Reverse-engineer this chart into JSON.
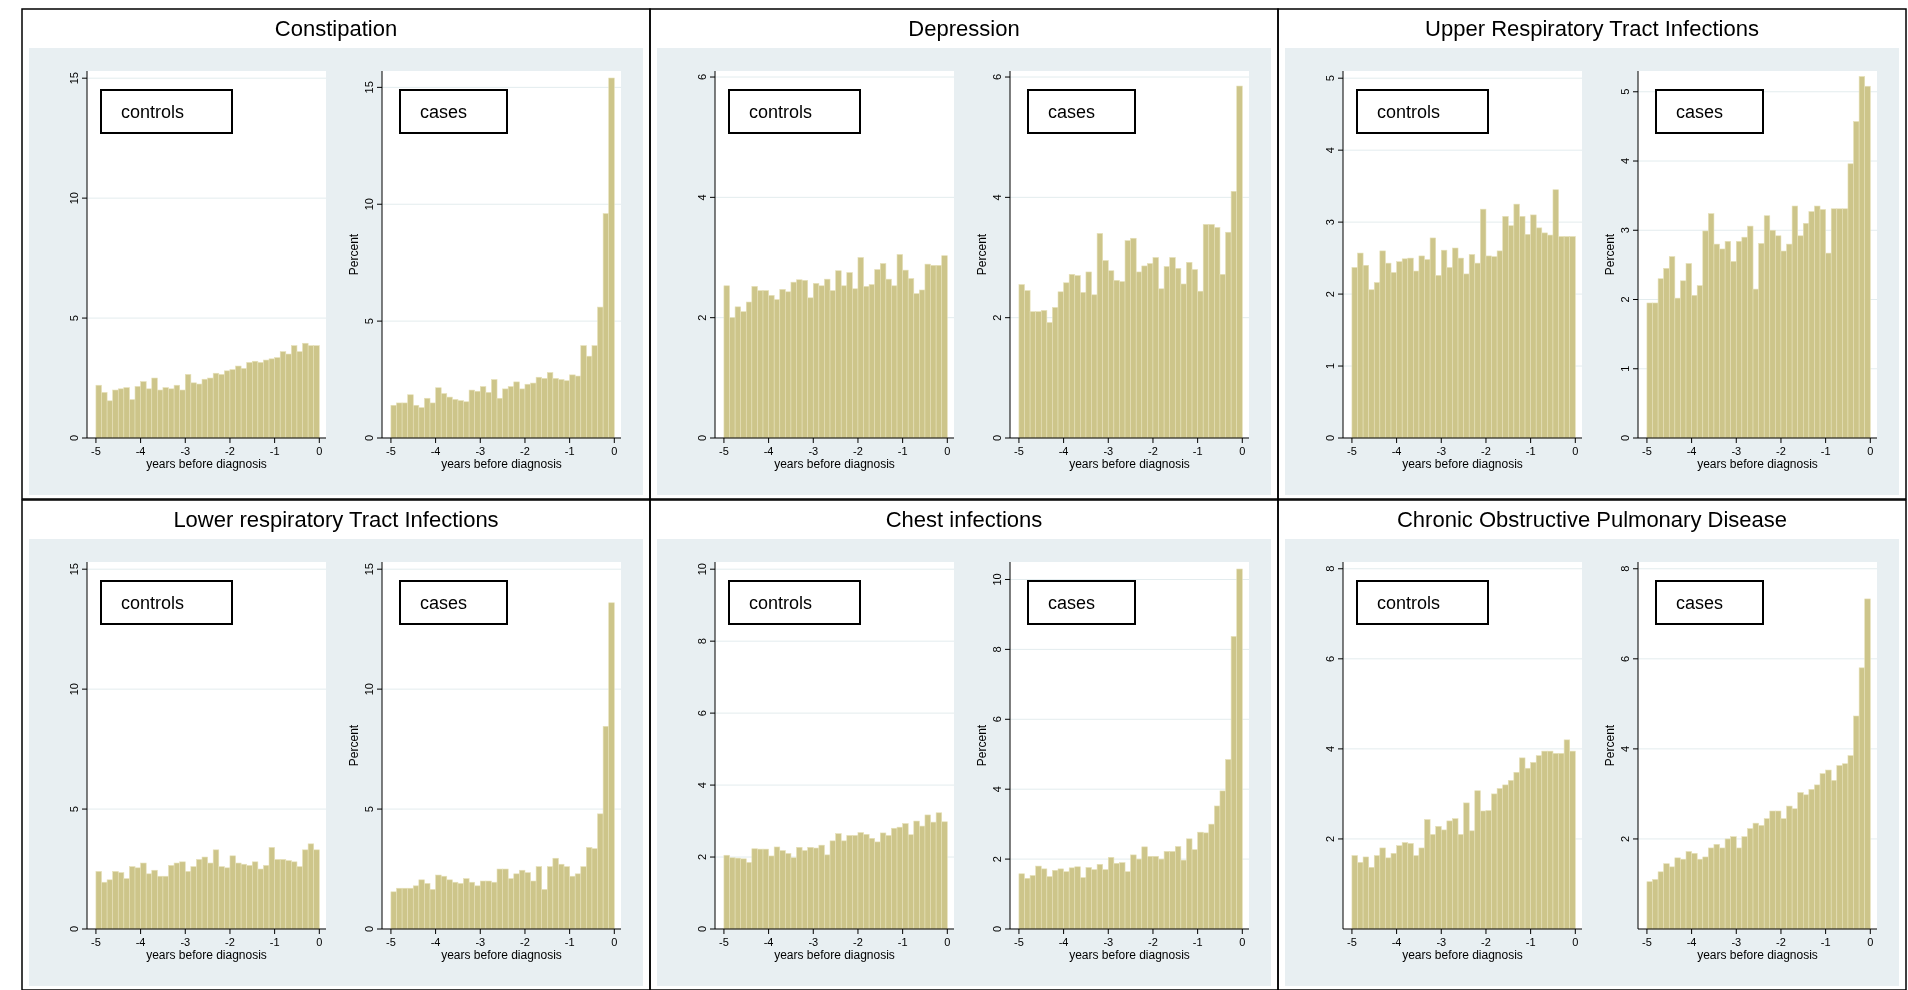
{
  "chart_data": [
    {
      "type": "histogram",
      "title": "Constipation",
      "annotations": [
        "controls"
      ],
      "xlabel": "years before diagnosis",
      "color": "#cdc58a",
      "grid": "y",
      "xlim": [
        -5.2,
        0.15
      ],
      "xticks": [
        -5,
        -4,
        -3,
        -2,
        -1,
        0
      ],
      "ylim": [
        0,
        15.3
      ],
      "yticks": [
        0,
        5,
        10,
        15
      ],
      "bins": [
        -5,
        -4.875,
        -4.75,
        -4.625,
        -4.5,
        -4.375,
        -4.25,
        -4.125,
        -4,
        -3.875,
        -3.75,
        -3.625,
        -3.5,
        -3.375,
        -3.25,
        -3.125,
        -3,
        -2.875,
        -2.75,
        -2.625,
        -2.5,
        -2.375,
        -2.25,
        -2.125,
        -2,
        -1.875,
        -1.75,
        -1.625,
        -1.5,
        -1.375,
        -1.25,
        -1.125,
        -1,
        -0.875,
        -0.75,
        -0.625,
        -0.5,
        -0.375,
        -0.25,
        -0.125,
        0
      ],
      "values": [
        2.2,
        1.9,
        1.55,
        2.0,
        2.05,
        2.1,
        1.6,
        2.15,
        2.35,
        2.05,
        2.5,
        2.0,
        2.1,
        2.05,
        2.2,
        2.0,
        2.65,
        2.3,
        2.25,
        2.45,
        2.5,
        2.7,
        2.65,
        2.8,
        2.85,
        3.0,
        2.9,
        3.15,
        3.2,
        3.15,
        3.25,
        3.3,
        3.35,
        3.6,
        3.5,
        3.85,
        3.6,
        3.95,
        3.85,
        3.85
      ]
    },
    {
      "type": "histogram",
      "annotations": [
        "cases"
      ],
      "xlabel": "years before diagnosis",
      "ylabel": "Percent",
      "color": "#cdc58a",
      "grid": "y",
      "xlim": [
        -5.2,
        0.15
      ],
      "xticks": [
        -5,
        -4,
        -3,
        -2,
        -1,
        0
      ],
      "ylim": [
        0,
        15.7
      ],
      "yticks": [
        0,
        5,
        10,
        15
      ],
      "bins": [
        -5,
        -4.875,
        -4.75,
        -4.625,
        -4.5,
        -4.375,
        -4.25,
        -4.125,
        -4,
        -3.875,
        -3.75,
        -3.625,
        -3.5,
        -3.375,
        -3.25,
        -3.125,
        -3,
        -2.875,
        -2.75,
        -2.625,
        -2.5,
        -2.375,
        -2.25,
        -2.125,
        -2,
        -1.875,
        -1.75,
        -1.625,
        -1.5,
        -1.375,
        -1.25,
        -1.125,
        -1,
        -0.875,
        -0.75,
        -0.625,
        -0.5,
        -0.375,
        -0.25,
        -0.125,
        0
      ],
      "values": [
        1.4,
        1.5,
        1.5,
        1.85,
        1.4,
        1.3,
        1.7,
        1.5,
        2.15,
        1.9,
        1.75,
        1.65,
        1.6,
        1.55,
        2.05,
        2.0,
        2.2,
        1.95,
        2.5,
        1.7,
        2.1,
        2.2,
        2.4,
        2.1,
        2.3,
        2.35,
        2.6,
        2.55,
        2.8,
        2.55,
        2.5,
        2.45,
        2.7,
        2.65,
        3.95,
        3.5,
        3.95,
        5.6,
        9.6,
        15.4
      ]
    },
    {
      "type": "histogram",
      "title": "Depression",
      "annotations": [
        "controls"
      ],
      "xlabel": "years before diagnosis",
      "color": "#cdc58a",
      "grid": "y",
      "xlim": [
        -5.2,
        0.15
      ],
      "xticks": [
        -5,
        -4,
        -3,
        -2,
        -1,
        0
      ],
      "ylim": [
        0,
        6.1
      ],
      "yticks": [
        0,
        2,
        4,
        6
      ],
      "bins": [
        -5,
        -4.875,
        -4.75,
        -4.625,
        -4.5,
        -4.375,
        -4.25,
        -4.125,
        -4,
        -3.875,
        -3.75,
        -3.625,
        -3.5,
        -3.375,
        -3.25,
        -3.125,
        -3,
        -2.875,
        -2.75,
        -2.625,
        -2.5,
        -2.375,
        -2.25,
        -2.125,
        -2,
        -1.875,
        -1.75,
        -1.625,
        -1.5,
        -1.375,
        -1.25,
        -1.125,
        -1,
        -0.875,
        -0.75,
        -0.625,
        -0.5,
        -0.375,
        -0.25,
        -0.125,
        0
      ],
      "values": [
        2.53,
        2.0,
        2.18,
        2.1,
        2.26,
        2.52,
        2.45,
        2.45,
        2.37,
        2.3,
        2.47,
        2.43,
        2.59,
        2.63,
        2.62,
        2.33,
        2.57,
        2.53,
        2.64,
        2.45,
        2.78,
        2.53,
        2.75,
        2.48,
        3.0,
        2.52,
        2.55,
        2.8,
        2.9,
        2.64,
        2.53,
        3.05,
        2.79,
        2.65,
        2.4,
        2.46,
        2.89,
        2.87,
        2.87,
        3.03
      ]
    },
    {
      "type": "histogram",
      "annotations": [
        "cases"
      ],
      "xlabel": "years before diagnosis",
      "ylabel": "Percent",
      "color": "#cdc58a",
      "grid": "y",
      "xlim": [
        -5.2,
        0.15
      ],
      "xticks": [
        -5,
        -4,
        -3,
        -2,
        -1,
        0
      ],
      "ylim": [
        0,
        6.1
      ],
      "yticks": [
        0,
        2,
        4,
        6
      ],
      "bins": [
        -5,
        -4.875,
        -4.75,
        -4.625,
        -4.5,
        -4.375,
        -4.25,
        -4.125,
        -4,
        -3.875,
        -3.75,
        -3.625,
        -3.5,
        -3.375,
        -3.25,
        -3.125,
        -3,
        -2.875,
        -2.75,
        -2.625,
        -2.5,
        -2.375,
        -2.25,
        -2.125,
        -2,
        -1.875,
        -1.75,
        -1.625,
        -1.5,
        -1.375,
        -1.25,
        -1.125,
        -1,
        -0.875,
        -0.75,
        -0.625,
        -0.5,
        -0.375,
        -0.25,
        -0.125,
        0
      ],
      "values": [
        2.55,
        2.45,
        2.1,
        2.1,
        2.12,
        1.92,
        2.17,
        2.43,
        2.58,
        2.72,
        2.7,
        2.42,
        2.76,
        2.38,
        3.4,
        2.95,
        2.78,
        2.62,
        2.6,
        3.28,
        3.32,
        2.76,
        2.86,
        2.9,
        3.0,
        2.48,
        2.85,
        3.0,
        2.82,
        2.56,
        2.92,
        2.8,
        2.44,
        3.55,
        3.55,
        3.5,
        2.72,
        3.42,
        4.1,
        5.85
      ]
    },
    {
      "type": "histogram",
      "title": "Upper Respiratory Tract Infections",
      "annotations": [
        "controls"
      ],
      "xlabel": "years before diagnosis",
      "color": "#cdc58a",
      "grid": "y",
      "xlim": [
        -5.2,
        0.15
      ],
      "xticks": [
        -5,
        -4,
        -3,
        -2,
        -1,
        0
      ],
      "ylim": [
        0,
        5.1
      ],
      "yticks": [
        0,
        1,
        2,
        3,
        4,
        5
      ],
      "bins": [
        -5,
        -4.875,
        -4.75,
        -4.625,
        -4.5,
        -4.375,
        -4.25,
        -4.125,
        -4,
        -3.875,
        -3.75,
        -3.625,
        -3.5,
        -3.375,
        -3.25,
        -3.125,
        -3,
        -2.875,
        -2.75,
        -2.625,
        -2.5,
        -2.375,
        -2.25,
        -2.125,
        -2,
        -1.875,
        -1.75,
        -1.625,
        -1.5,
        -1.375,
        -1.25,
        -1.125,
        -1,
        -0.875,
        -0.75,
        -0.625,
        -0.5,
        -0.375,
        -0.25,
        -0.125,
        0
      ],
      "values": [
        2.37,
        2.57,
        2.4,
        2.06,
        2.16,
        2.6,
        2.43,
        2.3,
        2.45,
        2.49,
        2.5,
        2.32,
        2.53,
        2.48,
        2.78,
        2.26,
        2.61,
        2.37,
        2.64,
        2.5,
        2.28,
        2.55,
        2.43,
        3.18,
        2.53,
        2.52,
        2.6,
        3.08,
        2.95,
        3.25,
        3.08,
        2.83,
        3.1,
        2.92,
        2.85,
        2.82,
        3.45,
        2.8,
        2.8,
        2.8
      ]
    },
    {
      "type": "histogram",
      "annotations": [
        "cases"
      ],
      "xlabel": "years before diagnosis",
      "ylabel": "Percent",
      "color": "#cdc58a",
      "grid": "y",
      "xlim": [
        -5.2,
        0.15
      ],
      "xticks": [
        -5,
        -4,
        -3,
        -2,
        -1,
        0
      ],
      "ylim": [
        0,
        5.3
      ],
      "yticks": [
        0,
        1,
        2,
        3,
        4,
        5
      ],
      "bins": [
        -5,
        -4.875,
        -4.75,
        -4.625,
        -4.5,
        -4.375,
        -4.25,
        -4.125,
        -4,
        -3.875,
        -3.75,
        -3.625,
        -3.5,
        -3.375,
        -3.25,
        -3.125,
        -3,
        -2.875,
        -2.75,
        -2.625,
        -2.5,
        -2.375,
        -2.25,
        -2.125,
        -2,
        -1.875,
        -1.75,
        -1.625,
        -1.5,
        -1.375,
        -1.25,
        -1.125,
        -1,
        -0.875,
        -0.75,
        -0.625,
        -0.5,
        -0.375,
        -0.25,
        -0.125,
        0
      ],
      "values": [
        1.95,
        1.95,
        2.3,
        2.45,
        2.62,
        2.02,
        2.27,
        2.52,
        2.06,
        2.2,
        2.99,
        3.24,
        2.8,
        2.73,
        2.84,
        2.55,
        2.84,
        2.9,
        3.06,
        2.15,
        2.81,
        3.21,
        3.0,
        2.92,
        2.7,
        2.8,
        3.35,
        2.92,
        3.1,
        3.27,
        3.35,
        3.3,
        2.67,
        3.31,
        3.31,
        3.31,
        3.96,
        4.57,
        5.22,
        5.08
      ]
    },
    {
      "type": "histogram",
      "title": "Lower respiratory Tract Infections",
      "annotations": [
        "controls"
      ],
      "xlabel": "years before diagnosis",
      "color": "#cdc58a",
      "grid": "y",
      "xlim": [
        -5.2,
        0.15
      ],
      "xticks": [
        -5,
        -4,
        -3,
        -2,
        -1,
        0
      ],
      "ylim": [
        0,
        15.3
      ],
      "yticks": [
        0,
        5,
        10,
        15
      ],
      "bins": [
        -5,
        -4.875,
        -4.75,
        -4.625,
        -4.5,
        -4.375,
        -4.25,
        -4.125,
        -4,
        -3.875,
        -3.75,
        -3.625,
        -3.5,
        -3.375,
        -3.25,
        -3.125,
        -3,
        -2.875,
        -2.75,
        -2.625,
        -2.5,
        -2.375,
        -2.25,
        -2.125,
        -2,
        -1.875,
        -1.75,
        -1.625,
        -1.5,
        -1.375,
        -1.25,
        -1.125,
        -1,
        -0.875,
        -0.75,
        -0.625,
        -0.5,
        -0.375,
        -0.25,
        -0.125,
        0
      ],
      "values": [
        2.4,
        1.95,
        2.05,
        2.4,
        2.35,
        2.1,
        2.6,
        2.55,
        2.75,
        2.3,
        2.45,
        2.2,
        2.2,
        2.65,
        2.75,
        2.8,
        2.4,
        2.6,
        2.9,
        3.0,
        2.75,
        3.3,
        2.6,
        2.55,
        3.05,
        2.75,
        2.7,
        2.65,
        2.8,
        2.5,
        2.65,
        3.4,
        2.9,
        2.9,
        2.85,
        2.8,
        2.6,
        3.3,
        3.55,
        3.3
      ]
    },
    {
      "type": "histogram",
      "annotations": [
        "cases"
      ],
      "xlabel": "years before diagnosis",
      "ylabel": "Percent",
      "color": "#cdc58a",
      "grid": "y",
      "xlim": [
        -5.2,
        0.15
      ],
      "xticks": [
        -5,
        -4,
        -3,
        -2,
        -1,
        0
      ],
      "ylim": [
        0,
        15.3
      ],
      "yticks": [
        0,
        5,
        10,
        15
      ],
      "bins": [
        -5,
        -4.875,
        -4.75,
        -4.625,
        -4.5,
        -4.375,
        -4.25,
        -4.125,
        -4,
        -3.875,
        -3.75,
        -3.625,
        -3.5,
        -3.375,
        -3.25,
        -3.125,
        -3,
        -2.875,
        -2.75,
        -2.625,
        -2.5,
        -2.375,
        -2.25,
        -2.125,
        -2,
        -1.875,
        -1.75,
        -1.625,
        -1.5,
        -1.375,
        -1.25,
        -1.125,
        -1,
        -0.875,
        -0.75,
        -0.625,
        -0.5,
        -0.375,
        -0.25,
        -0.125,
        0
      ],
      "values": [
        1.55,
        1.7,
        1.7,
        1.7,
        1.8,
        2.05,
        1.9,
        1.65,
        2.25,
        2.2,
        2.05,
        1.95,
        1.9,
        2.1,
        1.95,
        1.8,
        2.0,
        2.0,
        1.95,
        2.5,
        2.5,
        2.1,
        2.3,
        2.45,
        2.35,
        2.0,
        2.6,
        1.65,
        2.6,
        2.95,
        2.7,
        2.6,
        2.2,
        2.3,
        2.6,
        3.4,
        3.35,
        4.8,
        8.45,
        13.6
      ]
    },
    {
      "type": "histogram",
      "title": "Chest infections",
      "annotations": [
        "controls"
      ],
      "xlabel": "years before diagnosis",
      "color": "#cdc58a",
      "grid": "y",
      "xlim": [
        -5.2,
        0.15
      ],
      "xticks": [
        -5,
        -4,
        -3,
        -2,
        -1,
        0
      ],
      "ylim": [
        0,
        10.2
      ],
      "yticks": [
        0,
        2,
        4,
        6,
        8,
        10
      ],
      "bins": [
        -5,
        -4.875,
        -4.75,
        -4.625,
        -4.5,
        -4.375,
        -4.25,
        -4.125,
        -4,
        -3.875,
        -3.75,
        -3.625,
        -3.5,
        -3.375,
        -3.25,
        -3.125,
        -3,
        -2.875,
        -2.75,
        -2.625,
        -2.5,
        -2.375,
        -2.25,
        -2.125,
        -2,
        -1.875,
        -1.75,
        -1.625,
        -1.5,
        -1.375,
        -1.25,
        -1.125,
        -1,
        -0.875,
        -0.75,
        -0.625,
        -0.5,
        -0.375,
        -0.25,
        -0.125,
        0
      ],
      "values": [
        2.05,
        1.98,
        1.97,
        1.95,
        1.85,
        2.23,
        2.22,
        2.22,
        2.03,
        2.28,
        2.18,
        2.1,
        1.98,
        2.27,
        2.18,
        2.27,
        2.25,
        2.33,
        2.06,
        2.45,
        2.65,
        2.45,
        2.6,
        2.6,
        2.68,
        2.63,
        2.52,
        2.42,
        2.67,
        2.6,
        2.8,
        2.83,
        2.93,
        2.62,
        3.0,
        2.86,
        3.17,
        2.97,
        3.23,
        2.98
      ]
    },
    {
      "type": "histogram",
      "annotations": [
        "cases"
      ],
      "xlabel": "years before diagnosis",
      "ylabel": "Percent",
      "color": "#cdc58a",
      "grid": "y",
      "xlim": [
        -5.2,
        0.15
      ],
      "xticks": [
        -5,
        -4,
        -3,
        -2,
        -1,
        0
      ],
      "ylim": [
        0,
        10.5
      ],
      "yticks": [
        0,
        2,
        4,
        6,
        8,
        10
      ],
      "bins": [
        -5,
        -4.875,
        -4.75,
        -4.625,
        -4.5,
        -4.375,
        -4.25,
        -4.125,
        -4,
        -3.875,
        -3.75,
        -3.625,
        -3.5,
        -3.375,
        -3.25,
        -3.125,
        -3,
        -2.875,
        -2.75,
        -2.625,
        -2.5,
        -2.375,
        -2.25,
        -2.125,
        -2,
        -1.875,
        -1.75,
        -1.625,
        -1.5,
        -1.375,
        -1.25,
        -1.125,
        -1,
        -0.875,
        -0.75,
        -0.625,
        -0.5,
        -0.375,
        -0.25,
        -0.125,
        0
      ],
      "values": [
        1.58,
        1.45,
        1.53,
        1.8,
        1.72,
        1.5,
        1.68,
        1.72,
        1.64,
        1.75,
        1.78,
        1.47,
        1.76,
        1.7,
        1.85,
        1.7,
        2.05,
        1.88,
        1.9,
        1.64,
        2.12,
        2.0,
        2.35,
        2.08,
        2.08,
        2.0,
        2.22,
        2.22,
        2.36,
        1.97,
        2.58,
        2.27,
        2.77,
        2.75,
        3.0,
        3.52,
        3.95,
        4.85,
        8.37,
        10.3
      ]
    },
    {
      "type": "histogram",
      "title": "Chronic Obstructive Pulmonary Disease",
      "annotations": [
        "controls"
      ],
      "xlabel": "years before diagnosis",
      "color": "#cdc58a",
      "grid": "y",
      "xlim": [
        -5.2,
        0.15
      ],
      "xticks": [
        -5,
        -4,
        -3,
        -2,
        -1,
        0
      ],
      "ylim": [
        0,
        8.15
      ],
      "yticks": [
        2,
        4,
        6,
        8
      ],
      "bins": [
        -5,
        -4.875,
        -4.75,
        -4.625,
        -4.5,
        -4.375,
        -4.25,
        -4.125,
        -4,
        -3.875,
        -3.75,
        -3.625,
        -3.5,
        -3.375,
        -3.25,
        -3.125,
        -3,
        -2.875,
        -2.75,
        -2.625,
        -2.5,
        -2.375,
        -2.25,
        -2.125,
        -2,
        -1.875,
        -1.75,
        -1.625,
        -1.5,
        -1.375,
        -1.25,
        -1.125,
        -1,
        -0.875,
        -0.75,
        -0.625,
        -0.5,
        -0.375,
        -0.25,
        -0.125,
        0
      ],
      "values": [
        1.63,
        1.48,
        1.6,
        1.37,
        1.63,
        1.8,
        1.58,
        1.68,
        1.85,
        1.92,
        1.9,
        1.63,
        1.8,
        2.43,
        2.1,
        2.28,
        2.2,
        2.4,
        2.45,
        2.1,
        2.8,
        2.18,
        3.07,
        2.62,
        2.63,
        3.0,
        3.12,
        3.2,
        3.3,
        3.48,
        3.8,
        3.57,
        3.7,
        3.85,
        3.95,
        3.95,
        3.9,
        3.9,
        4.2,
        3.95
      ]
    },
    {
      "type": "histogram",
      "annotations": [
        "cases"
      ],
      "xlabel": "years before diagnosis",
      "ylabel": "Percent",
      "color": "#cdc58a",
      "grid": "y",
      "xlim": [
        -5.2,
        0.15
      ],
      "xticks": [
        -5,
        -4,
        -3,
        -2,
        -1,
        0
      ],
      "ylim": [
        0,
        8.15
      ],
      "yticks": [
        2,
        4,
        6,
        8
      ],
      "bins": [
        -5,
        -4.875,
        -4.75,
        -4.625,
        -4.5,
        -4.375,
        -4.25,
        -4.125,
        -4,
        -3.875,
        -3.75,
        -3.625,
        -3.5,
        -3.375,
        -3.25,
        -3.125,
        -3,
        -2.875,
        -2.75,
        -2.625,
        -2.5,
        -2.375,
        -2.25,
        -2.125,
        -2,
        -1.875,
        -1.75,
        -1.625,
        -1.5,
        -1.375,
        -1.25,
        -1.125,
        -1,
        -0.875,
        -0.75,
        -0.625,
        -0.5,
        -0.375,
        -0.25,
        -0.125,
        0
      ],
      "values": [
        1.05,
        1.1,
        1.27,
        1.45,
        1.38,
        1.58,
        1.55,
        1.72,
        1.68,
        1.55,
        1.6,
        1.8,
        1.88,
        1.8,
        2.0,
        2.05,
        1.8,
        2.05,
        2.23,
        2.35,
        2.3,
        2.45,
        2.62,
        2.62,
        2.45,
        2.73,
        2.67,
        3.03,
        2.98,
        3.1,
        3.2,
        3.45,
        3.53,
        3.3,
        3.63,
        3.67,
        3.85,
        4.73,
        5.8,
        7.33
      ]
    }
  ]
}
